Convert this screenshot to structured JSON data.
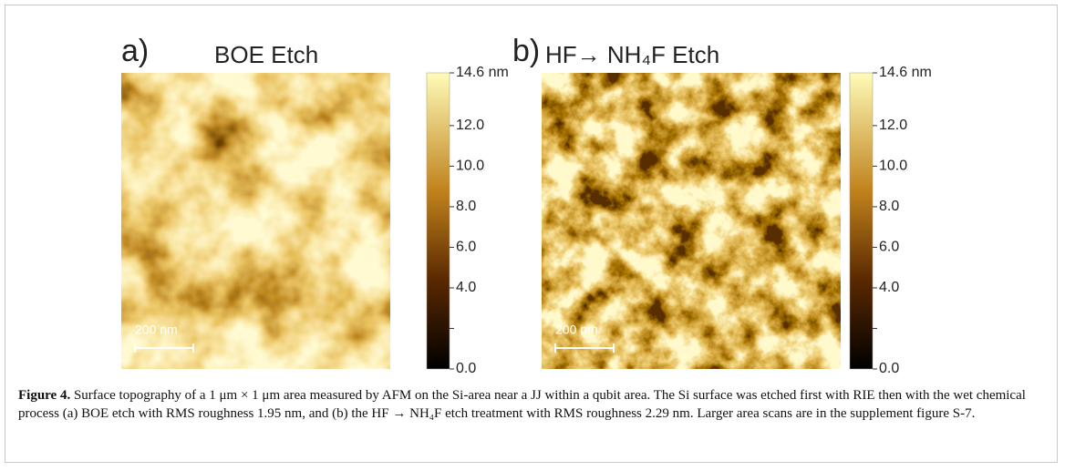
{
  "panels": [
    {
      "label": "a)",
      "title": "BOE Etch",
      "scale_bar": "200 nm",
      "colorbar": {
        "lim": [
          0,
          14.6
        ],
        "ticks": [
          {
            "value": 14.6,
            "label": "14.6 nm"
          },
          {
            "value": 12,
            "label": "12.0"
          },
          {
            "value": 10,
            "label": "10.0"
          },
          {
            "value": 8,
            "label": "8.0"
          },
          {
            "value": 6,
            "label": "6.0"
          },
          {
            "value": 4,
            "label": "4.0"
          },
          {
            "value": 2,
            "label": null
          },
          {
            "value": 0,
            "label": "0.0"
          }
        ]
      }
    },
    {
      "label": "b)",
      "title": "HF→ NH₄F Etch",
      "scale_bar": "200 nm",
      "colorbar": {
        "lim": [
          0,
          14.6
        ],
        "ticks": [
          {
            "value": 14.6,
            "label": "14.6 nm"
          },
          {
            "value": 12,
            "label": "12.0"
          },
          {
            "value": 10,
            "label": "10.0"
          },
          {
            "value": 8,
            "label": "8.0"
          },
          {
            "value": 6,
            "label": "6.0"
          },
          {
            "value": 4,
            "label": "4.0"
          },
          {
            "value": 2,
            "label": null
          },
          {
            "value": 0,
            "label": "0.0"
          }
        ]
      }
    }
  ],
  "caption": {
    "label": "Figure 4.",
    "text": "Surface topography of a 1 μm × 1 μm area measured by AFM on the Si-area near a JJ within a qubit area. The Si surface was etched first with RIE then with the wet chemical process (a) BOE etch with RMS roughness 1.95 nm, and (b) the HF → NH₄F etch treatment with RMS roughness 2.29 nm. Larger area scans are in the supplement figure S-7."
  }
}
